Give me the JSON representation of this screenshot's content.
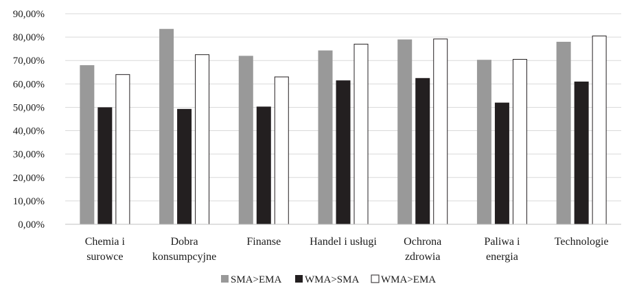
{
  "chart_data": {
    "type": "bar",
    "categories": [
      [
        "Chemia i",
        "surowce"
      ],
      [
        "Dobra",
        "konsumpcyjne"
      ],
      [
        "Finanse"
      ],
      [
        "Handel i usługi"
      ],
      [
        "Ochrona",
        "zdrowia"
      ],
      [
        "Paliwa i",
        "energia"
      ],
      [
        "Technologie"
      ]
    ],
    "series": [
      {
        "name": "SMA>EMA",
        "values": [
          68.0,
          83.5,
          72.0,
          74.3,
          79.0,
          70.3,
          78.0
        ],
        "color": "#999999"
      },
      {
        "name": "WMA>SMA",
        "values": [
          50.0,
          49.3,
          50.3,
          61.5,
          62.5,
          52.0,
          61.0
        ],
        "color": "#231f20"
      },
      {
        "name": "WMA>EMA",
        "values": [
          64.0,
          72.5,
          63.0,
          77.0,
          79.2,
          70.5,
          80.5
        ],
        "color": "#ffffff"
      }
    ],
    "ylim": [
      0,
      90
    ],
    "yticks": [
      "0,00%",
      "10,00%",
      "20,00%",
      "30,00%",
      "40,00%",
      "50,00%",
      "60,00%",
      "70,00%",
      "80,00%",
      "90,00%"
    ],
    "ytick_values": [
      0,
      10,
      20,
      30,
      40,
      50,
      60,
      70,
      80,
      90
    ],
    "grid": true,
    "legend": "bottom-center"
  }
}
